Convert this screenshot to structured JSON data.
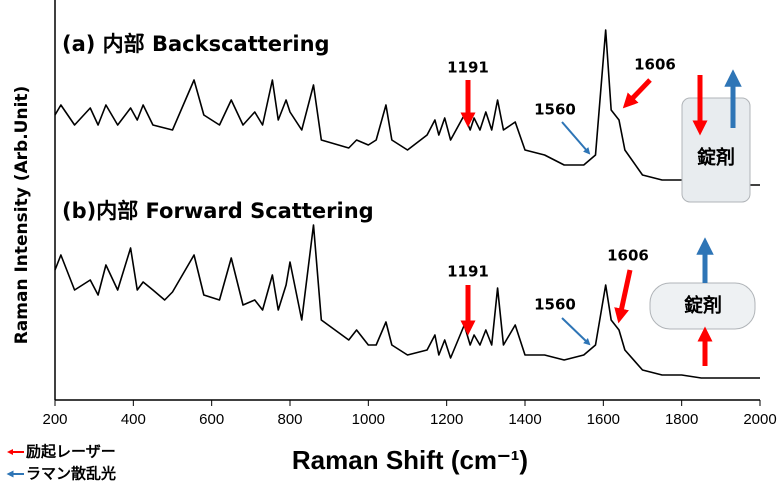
{
  "chart_data": {
    "type": "line",
    "xlabel": "Raman Shift (cm⁻¹)",
    "ylabel": "Raman Intensity (Arb.Unit)",
    "xlim": [
      200,
      2000
    ],
    "ylim": [
      0,
      100
    ],
    "xticks": [
      200,
      400,
      600,
      800,
      1000,
      1200,
      1400,
      1600,
      1800,
      2000
    ],
    "x": [
      200,
      215,
      250,
      290,
      310,
      330,
      360,
      393,
      410,
      425,
      450,
      480,
      500,
      555,
      580,
      620,
      650,
      680,
      710,
      730,
      755,
      770,
      790,
      800,
      830,
      860,
      880,
      950,
      970,
      1000,
      1020,
      1045,
      1060,
      1100,
      1150,
      1170,
      1180,
      1195,
      1210,
      1245,
      1260,
      1270,
      1285,
      1300,
      1315,
      1330,
      1345,
      1375,
      1400,
      1450,
      1500,
      1550,
      1580,
      1606,
      1620,
      1640,
      1655,
      1700,
      1750,
      1800,
      1850,
      1900,
      1950,
      2000
    ],
    "series": [
      {
        "name": "(a) 内部 Backscattering",
        "color": "#000000",
        "values": [
          71.25,
          73.75,
          68.75,
          73,
          68.75,
          73.75,
          68.75,
          73,
          70,
          73.75,
          68.75,
          68,
          67.5,
          80,
          71.25,
          68.75,
          75,
          68.75,
          72,
          68.75,
          80,
          70,
          75,
          72,
          67.5,
          78.75,
          65,
          63,
          65,
          63.75,
          65,
          73.75,
          65,
          62.5,
          66.25,
          70,
          66.25,
          70.5,
          65,
          71.25,
          67.5,
          70.5,
          67.5,
          72,
          67.5,
          75,
          67.5,
          69.5,
          62.5,
          61.25,
          58.75,
          58.75,
          61.25,
          92.5,
          72.5,
          70,
          62.5,
          56.25,
          55,
          55,
          53.75,
          55,
          53.75,
          53.75
        ]
      },
      {
        "name": "(b)内部 Forward Scattering",
        "color": "#000000",
        "values": [
          32.5,
          36.25,
          27.5,
          30,
          26.25,
          33.75,
          27.5,
          38,
          27.5,
          29.5,
          27.5,
          25,
          27,
          36.25,
          26.25,
          25,
          35.5,
          23.75,
          25,
          22.5,
          31.25,
          22.5,
          28.75,
          34.5,
          20,
          43.75,
          20,
          15,
          17.5,
          13.75,
          13.75,
          19.5,
          13.75,
          11.25,
          12.5,
          16.25,
          11.25,
          15,
          10.5,
          18.75,
          13.75,
          16.25,
          13.75,
          17.5,
          13.75,
          28,
          13.75,
          18.75,
          11.25,
          11.25,
          10,
          11.25,
          13.75,
          28.75,
          20,
          17.5,
          12.5,
          7.5,
          6.25,
          6.25,
          5.5,
          5.5,
          5.5,
          5.5
        ]
      }
    ],
    "annotations": [
      "1191",
      "1560",
      "1606",
      "錠剤",
      "1191",
      "1560",
      "1606",
      "錠剤"
    ],
    "legend": [
      {
        "label": "励起レーザー",
        "color": "#ff0000"
      },
      {
        "label": "ラマン散乱光",
        "color": "#2e75b6"
      }
    ]
  }
}
